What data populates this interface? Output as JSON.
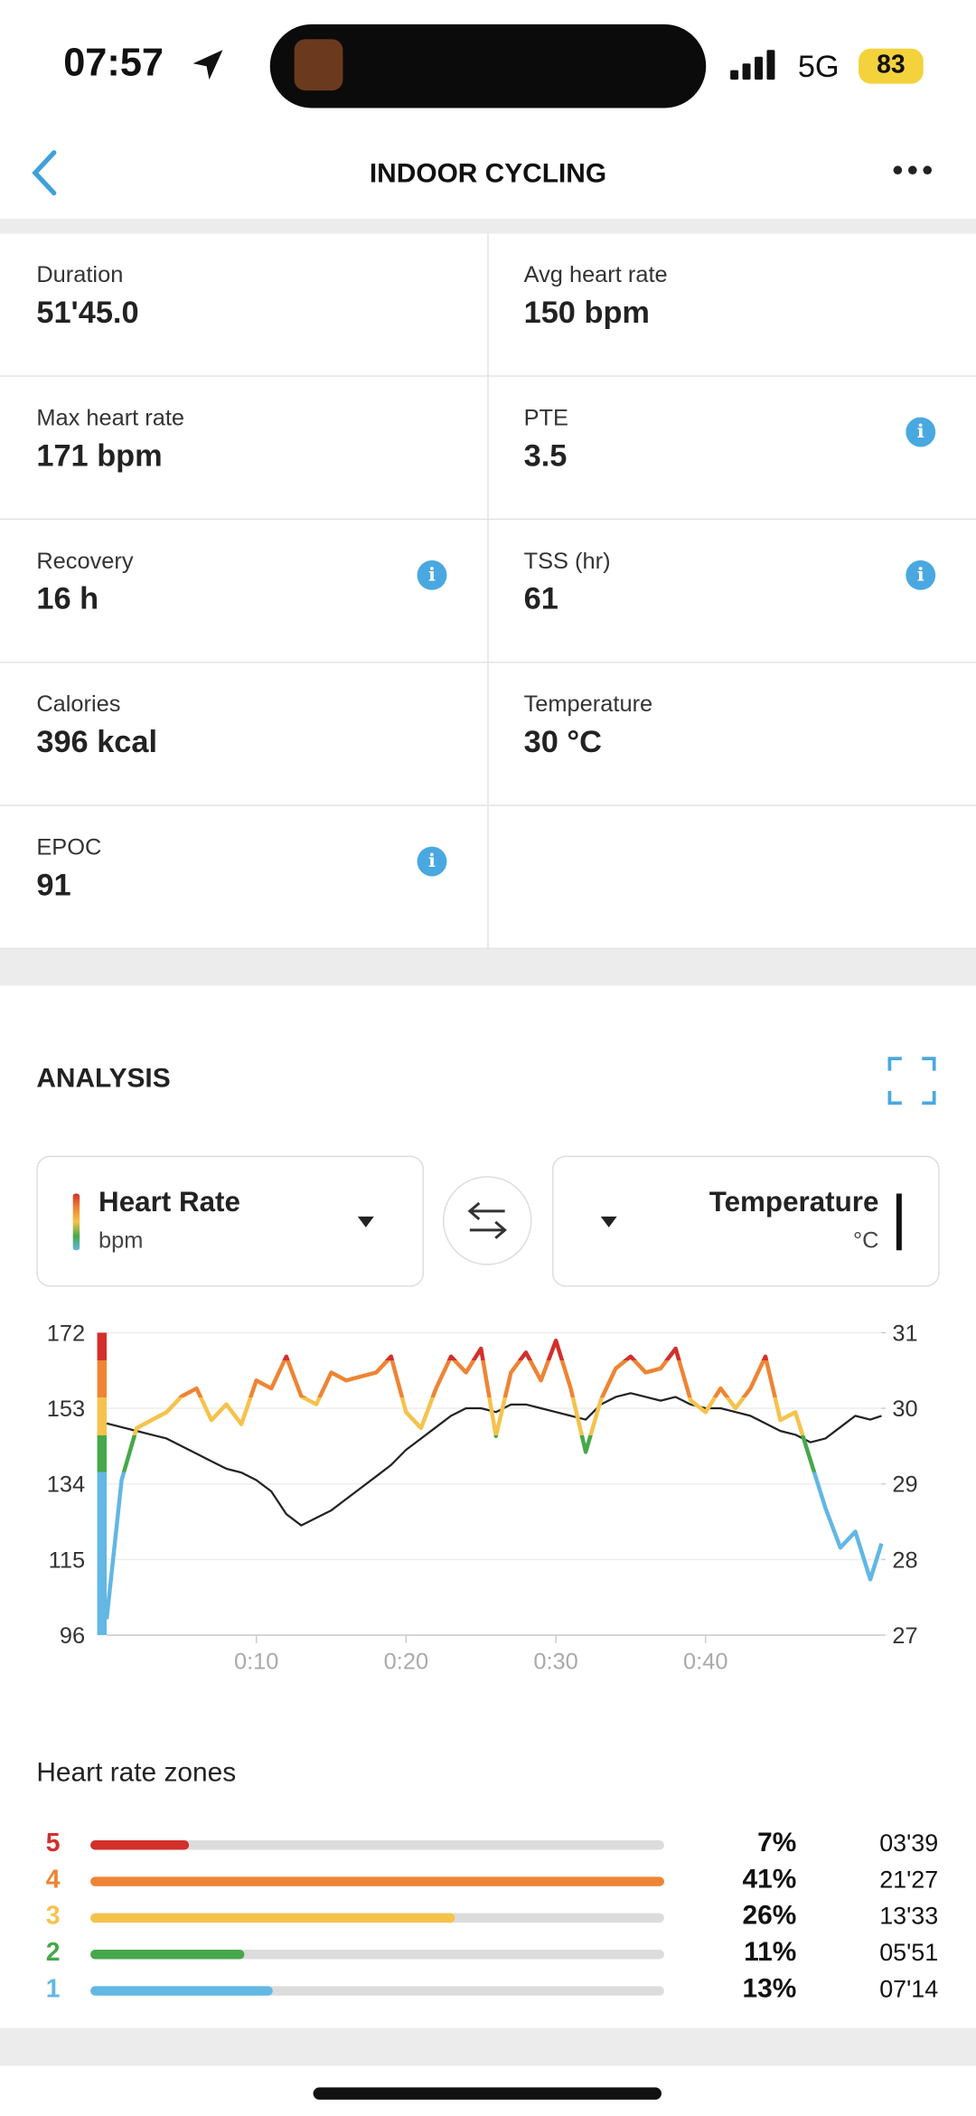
{
  "status_bar": {
    "time": "07:57",
    "network": "5G",
    "battery": "83"
  },
  "header": {
    "title": "INDOOR CYCLING"
  },
  "stats": [
    {
      "label": "Duration",
      "value": "51'45.0"
    },
    {
      "label": "Avg heart rate",
      "value": "150 bpm"
    },
    {
      "label": "Max heart rate",
      "value": "171 bpm"
    },
    {
      "label": "PTE",
      "value": "3.5",
      "info": true
    },
    {
      "label": "Recovery",
      "value": "16 h",
      "info": true
    },
    {
      "label": "TSS (hr)",
      "value": "61",
      "info": true
    },
    {
      "label": "Calories",
      "value": "396 kcal"
    },
    {
      "label": "Temperature",
      "value": "30 °C"
    },
    {
      "label": "EPOC",
      "value": "91",
      "info": true
    }
  ],
  "analysis": {
    "title": "ANALYSIS",
    "left_selector": {
      "name": "Heart Rate",
      "unit": "bpm"
    },
    "right_selector": {
      "name": "Temperature",
      "unit": "°C"
    }
  },
  "chart_data": {
    "type": "line",
    "x": [
      0,
      1,
      2,
      3,
      4,
      5,
      6,
      7,
      8,
      9,
      10,
      11,
      12,
      13,
      14,
      15,
      16,
      17,
      18,
      19,
      20,
      21,
      22,
      23,
      24,
      25,
      26,
      27,
      28,
      29,
      30,
      31,
      32,
      33,
      34,
      35,
      36,
      37,
      38,
      39,
      40,
      41,
      42,
      43,
      44,
      45,
      46,
      47,
      48,
      49,
      50,
      51,
      51.75
    ],
    "series": [
      {
        "name": "Heart Rate",
        "values": [
          100,
          135,
          148,
          150,
          152,
          156,
          158,
          150,
          154,
          149,
          160,
          158,
          166,
          156,
          154,
          162,
          160,
          161,
          162,
          166,
          152,
          148,
          158,
          166,
          162,
          168,
          146,
          162,
          167,
          160,
          170,
          158,
          142,
          155,
          163,
          166,
          162,
          163,
          168,
          155,
          152,
          158,
          153,
          158,
          166,
          150,
          152,
          140,
          128,
          118,
          122,
          110,
          119
        ]
      },
      {
        "name": "Temperature",
        "color": "#222222",
        "axis": "y2",
        "values": [
          29.8,
          29.75,
          29.7,
          29.65,
          29.6,
          29.5,
          29.4,
          29.3,
          29.2,
          29.15,
          29.05,
          28.9,
          28.6,
          28.45,
          28.55,
          28.65,
          28.8,
          28.95,
          29.1,
          29.25,
          29.45,
          29.6,
          29.75,
          29.9,
          30.0,
          30.0,
          29.95,
          30.05,
          30.05,
          30.0,
          29.95,
          29.9,
          29.85,
          30.05,
          30.15,
          30.2,
          30.15,
          30.1,
          30.15,
          30.05,
          30.0,
          30.0,
          29.95,
          29.9,
          29.8,
          29.7,
          29.65,
          29.55,
          29.6,
          29.75,
          29.9,
          29.85,
          29.9
        ]
      }
    ],
    "xlim": [
      0,
      51.75
    ],
    "xticks": [
      {
        "value": 10,
        "label": "0:10"
      },
      {
        "value": 20,
        "label": "0:20"
      },
      {
        "value": 30,
        "label": "0:30"
      },
      {
        "value": 40,
        "label": "0:40"
      }
    ],
    "ylim": [
      96,
      172
    ],
    "yticks": [
      96,
      115,
      134,
      153,
      172
    ],
    "y2lim": [
      27,
      31
    ],
    "y2ticks": [
      27,
      28,
      29,
      30,
      31
    ],
    "grid": true
  },
  "zones": {
    "title": "Heart rate zones",
    "rows": [
      {
        "zone": "5",
        "color": "#d2302b",
        "percent": 7,
        "percent_label": "7%",
        "time": "03'39"
      },
      {
        "zone": "4",
        "color": "#ee8434",
        "percent": 41,
        "percent_label": "41%",
        "time": "21'27"
      },
      {
        "zone": "3",
        "color": "#f5c24c",
        "percent": 26,
        "percent_label": "26%",
        "time": "13'33"
      },
      {
        "zone": "2",
        "color": "#46a84a",
        "percent": 11,
        "percent_label": "11%",
        "time": "05'51"
      },
      {
        "zone": "1",
        "color": "#62b7e4",
        "percent": 13,
        "percent_label": "13%",
        "time": "07'14"
      }
    ]
  }
}
